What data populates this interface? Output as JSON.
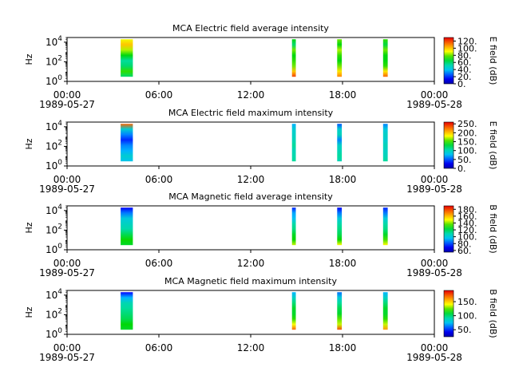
{
  "figure": {
    "background": "#ffffff"
  },
  "time_axis": {
    "tick_labels": [
      "00:00",
      "06:00",
      "12:00",
      "18:00",
      "00:00"
    ],
    "tick_hours": [
      0,
      6,
      12,
      18,
      24
    ],
    "start_date": "1989-05-27",
    "end_date": "1989-05-28",
    "range_hours": [
      0,
      24
    ]
  },
  "chart_data": [
    {
      "type": "heatmap",
      "title": "MCA  Electric field average intensity",
      "ylabel": "Hz",
      "yscale": "log",
      "yticks": [
        "10^0",
        "10^2",
        "10^4"
      ],
      "ylim": [
        1,
        30000
      ],
      "colorbar": {
        "label": "E field (dB)",
        "ticks": [
          "0.",
          "20.",
          "40.",
          "60.",
          "80.",
          "100.",
          "120."
        ],
        "range": [
          0,
          130
        ]
      },
      "bursts": [
        {
          "start_hour": 3.5,
          "end_hour": 4.3,
          "f_low": 3,
          "f_high": 20000,
          "levels": [
            60,
            75,
            60,
            55,
            70,
            85,
            100,
            90
          ]
        },
        {
          "start_hour": 14.7,
          "end_hour": 14.95,
          "f_low": 3,
          "f_high": 20000,
          "levels": [
            120,
            100,
            80,
            75,
            70,
            80,
            60,
            70
          ]
        },
        {
          "start_hour": 17.65,
          "end_hour": 17.95,
          "f_low": 3,
          "f_high": 20000,
          "levels": [
            110,
            95,
            80,
            70,
            75,
            85,
            70,
            80
          ]
        },
        {
          "start_hour": 20.65,
          "end_hour": 20.95,
          "f_low": 3,
          "f_high": 20000,
          "levels": [
            115,
            95,
            75,
            70,
            70,
            80,
            65,
            75
          ]
        }
      ]
    },
    {
      "type": "heatmap",
      "title": "MCA  Electric field maximum intensity",
      "ylabel": "Hz",
      "yscale": "log",
      "yticks": [
        "10^0",
        "10^2",
        "10^4"
      ],
      "ylim": [
        1,
        30000
      ],
      "colorbar": {
        "label": "E field (dB)",
        "ticks": [
          "0.",
          "50.",
          "100.",
          "150.",
          "200.",
          "250."
        ],
        "range": [
          0,
          260
        ]
      },
      "bursts": [
        {
          "start_hour": 3.5,
          "end_hour": 4.3,
          "f_low": 3,
          "f_high": 20000,
          "levels": [
            80,
            90,
            70,
            60,
            40,
            60,
            90,
            230
          ]
        },
        {
          "start_hour": 14.7,
          "end_hour": 14.95,
          "f_low": 3,
          "f_high": 20000,
          "levels": [
            110,
            105,
            100,
            110,
            100,
            95,
            90,
            70
          ]
        },
        {
          "start_hour": 17.65,
          "end_hour": 17.95,
          "f_low": 3,
          "f_high": 20000,
          "levels": [
            100,
            110,
            100,
            95,
            60,
            100,
            90,
            50
          ]
        },
        {
          "start_hour": 20.65,
          "end_hour": 20.95,
          "f_low": 3,
          "f_high": 20000,
          "levels": [
            110,
            100,
            95,
            100,
            90,
            95,
            85,
            60
          ]
        }
      ]
    },
    {
      "type": "heatmap",
      "title": "MCA  Magnetic field average intensity",
      "ylabel": "Hz",
      "yscale": "log",
      "yticks": [
        "10^0",
        "10^2",
        "10^4"
      ],
      "ylim": [
        1,
        30000
      ],
      "colorbar": {
        "label": "B field (dB)",
        "ticks": [
          "60.",
          "80.",
          "100.",
          "120.",
          "140.",
          "160.",
          "180."
        ],
        "range": [
          55,
          190
        ]
      },
      "bursts": [
        {
          "start_hour": 3.5,
          "end_hour": 4.3,
          "f_low": 3,
          "f_high": 20000,
          "levels": [
            125,
            130,
            120,
            110,
            105,
            100,
            85,
            70
          ]
        },
        {
          "start_hour": 14.7,
          "end_hour": 14.95,
          "f_low": 3,
          "f_high": 20000,
          "levels": [
            145,
            130,
            125,
            115,
            110,
            95,
            90,
            75
          ]
        },
        {
          "start_hour": 17.65,
          "end_hour": 17.95,
          "f_low": 3,
          "f_high": 20000,
          "levels": [
            150,
            130,
            120,
            115,
            110,
            100,
            85,
            70
          ]
        },
        {
          "start_hour": 20.65,
          "end_hour": 20.95,
          "f_low": 3,
          "f_high": 20000,
          "levels": [
            150,
            135,
            125,
            115,
            110,
            100,
            85,
            75
          ]
        }
      ]
    },
    {
      "type": "heatmap",
      "title": "MCA  Magnetic field maximum intensity",
      "ylabel": "Hz",
      "yscale": "log",
      "yticks": [
        "10^0",
        "10^2",
        "10^4"
      ],
      "ylim": [
        1,
        30000
      ],
      "colorbar": {
        "label": "B field (dB)",
        "ticks": [
          "50.",
          "100.",
          "150."
        ],
        "range": [
          25,
          190
        ]
      },
      "bursts": [
        {
          "start_hour": 3.5,
          "end_hour": 4.3,
          "f_low": 3,
          "f_high": 20000,
          "levels": [
            110,
            115,
            105,
            100,
            95,
            90,
            70,
            45
          ]
        },
        {
          "start_hour": 14.7,
          "end_hour": 14.95,
          "f_low": 3,
          "f_high": 20000,
          "levels": [
            170,
            140,
            120,
            110,
            110,
            100,
            85,
            70
          ]
        },
        {
          "start_hour": 17.65,
          "end_hour": 17.95,
          "f_low": 3,
          "f_high": 20000,
          "levels": [
            175,
            135,
            125,
            110,
            105,
            95,
            80,
            60
          ]
        },
        {
          "start_hour": 20.65,
          "end_hour": 20.95,
          "f_low": 3,
          "f_high": 20000,
          "levels": [
            160,
            135,
            120,
            110,
            110,
            100,
            85,
            70
          ]
        }
      ]
    }
  ]
}
